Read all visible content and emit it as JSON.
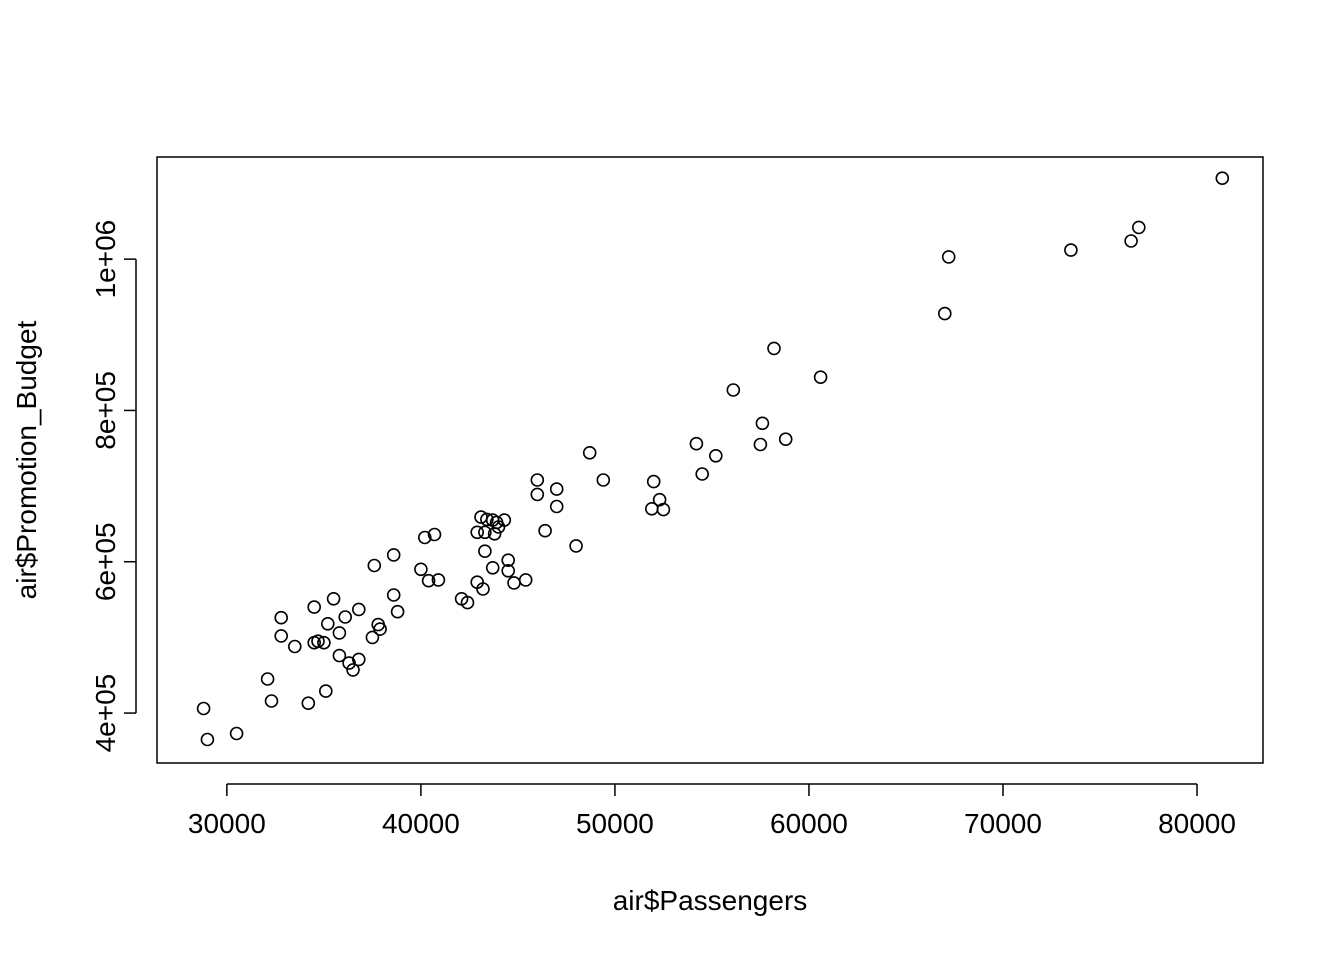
{
  "chart_data": {
    "type": "scatter",
    "title": "",
    "xlabel": "air$Passengers",
    "ylabel": "air$Promotion_Budget",
    "xlim": [
      26400,
      83400
    ],
    "ylim": [
      334000,
      1135000
    ],
    "x_ticks": [
      30000,
      40000,
      50000,
      60000,
      70000,
      80000
    ],
    "x_tick_labels": [
      "30000",
      "40000",
      "50000",
      "60000",
      "70000",
      "80000"
    ],
    "y_ticks": [
      400000,
      600000,
      800000,
      1000000
    ],
    "y_tick_labels": [
      "4e+05",
      "6e+05",
      "8e+05",
      "1e+06"
    ],
    "grid": false,
    "marker": "open-circle",
    "points": [
      {
        "x": 28800,
        "y": 406000
      },
      {
        "x": 29000,
        "y": 365000
      },
      {
        "x": 30500,
        "y": 373000
      },
      {
        "x": 32100,
        "y": 445000
      },
      {
        "x": 32300,
        "y": 416000
      },
      {
        "x": 32800,
        "y": 526000
      },
      {
        "x": 32800,
        "y": 502000
      },
      {
        "x": 33500,
        "y": 488000
      },
      {
        "x": 34200,
        "y": 413000
      },
      {
        "x": 34500,
        "y": 540000
      },
      {
        "x": 34500,
        "y": 493000
      },
      {
        "x": 34700,
        "y": 495000
      },
      {
        "x": 35000,
        "y": 493000
      },
      {
        "x": 35100,
        "y": 429000
      },
      {
        "x": 35200,
        "y": 518000
      },
      {
        "x": 35500,
        "y": 551000
      },
      {
        "x": 35800,
        "y": 506000
      },
      {
        "x": 35800,
        "y": 476000
      },
      {
        "x": 36100,
        "y": 527000
      },
      {
        "x": 36300,
        "y": 466000
      },
      {
        "x": 36500,
        "y": 457000
      },
      {
        "x": 36800,
        "y": 537000
      },
      {
        "x": 36800,
        "y": 471000
      },
      {
        "x": 37500,
        "y": 500000
      },
      {
        "x": 37600,
        "y": 595000
      },
      {
        "x": 37800,
        "y": 517000
      },
      {
        "x": 37900,
        "y": 511000
      },
      {
        "x": 38600,
        "y": 609000
      },
      {
        "x": 38600,
        "y": 556000
      },
      {
        "x": 38800,
        "y": 534000
      },
      {
        "x": 40000,
        "y": 590000
      },
      {
        "x": 40200,
        "y": 632000
      },
      {
        "x": 40400,
        "y": 575000
      },
      {
        "x": 40700,
        "y": 636000
      },
      {
        "x": 40900,
        "y": 576000
      },
      {
        "x": 42100,
        "y": 551000
      },
      {
        "x": 42400,
        "y": 546000
      },
      {
        "x": 42900,
        "y": 573000
      },
      {
        "x": 42900,
        "y": 639000
      },
      {
        "x": 43100,
        "y": 659000
      },
      {
        "x": 43200,
        "y": 564000
      },
      {
        "x": 43300,
        "y": 639000
      },
      {
        "x": 43300,
        "y": 614000
      },
      {
        "x": 43400,
        "y": 656000
      },
      {
        "x": 43700,
        "y": 655000
      },
      {
        "x": 43700,
        "y": 592000
      },
      {
        "x": 43800,
        "y": 637000
      },
      {
        "x": 43900,
        "y": 652000
      },
      {
        "x": 44000,
        "y": 646000
      },
      {
        "x": 44300,
        "y": 655000
      },
      {
        "x": 44500,
        "y": 602000
      },
      {
        "x": 44500,
        "y": 588000
      },
      {
        "x": 44800,
        "y": 572000
      },
      {
        "x": 45400,
        "y": 576000
      },
      {
        "x": 46000,
        "y": 708000
      },
      {
        "x": 46000,
        "y": 689000
      },
      {
        "x": 46400,
        "y": 641000
      },
      {
        "x": 47000,
        "y": 696000
      },
      {
        "x": 47000,
        "y": 673000
      },
      {
        "x": 48000,
        "y": 621000
      },
      {
        "x": 48700,
        "y": 744000
      },
      {
        "x": 49400,
        "y": 708000
      },
      {
        "x": 51900,
        "y": 670000
      },
      {
        "x": 52000,
        "y": 706000
      },
      {
        "x": 52300,
        "y": 682000
      },
      {
        "x": 52500,
        "y": 669000
      },
      {
        "x": 54200,
        "y": 756000
      },
      {
        "x": 54500,
        "y": 716000
      },
      {
        "x": 55200,
        "y": 740000
      },
      {
        "x": 56100,
        "y": 827000
      },
      {
        "x": 57500,
        "y": 755000
      },
      {
        "x": 57600,
        "y": 783000
      },
      {
        "x": 58200,
        "y": 882000
      },
      {
        "x": 58800,
        "y": 762000
      },
      {
        "x": 60600,
        "y": 844000
      },
      {
        "x": 67000,
        "y": 928000
      },
      {
        "x": 67200,
        "y": 1003000
      },
      {
        "x": 73500,
        "y": 1012000
      },
      {
        "x": 76600,
        "y": 1024000
      },
      {
        "x": 77000,
        "y": 1042000
      },
      {
        "x": 81300,
        "y": 1107000
      }
    ]
  }
}
